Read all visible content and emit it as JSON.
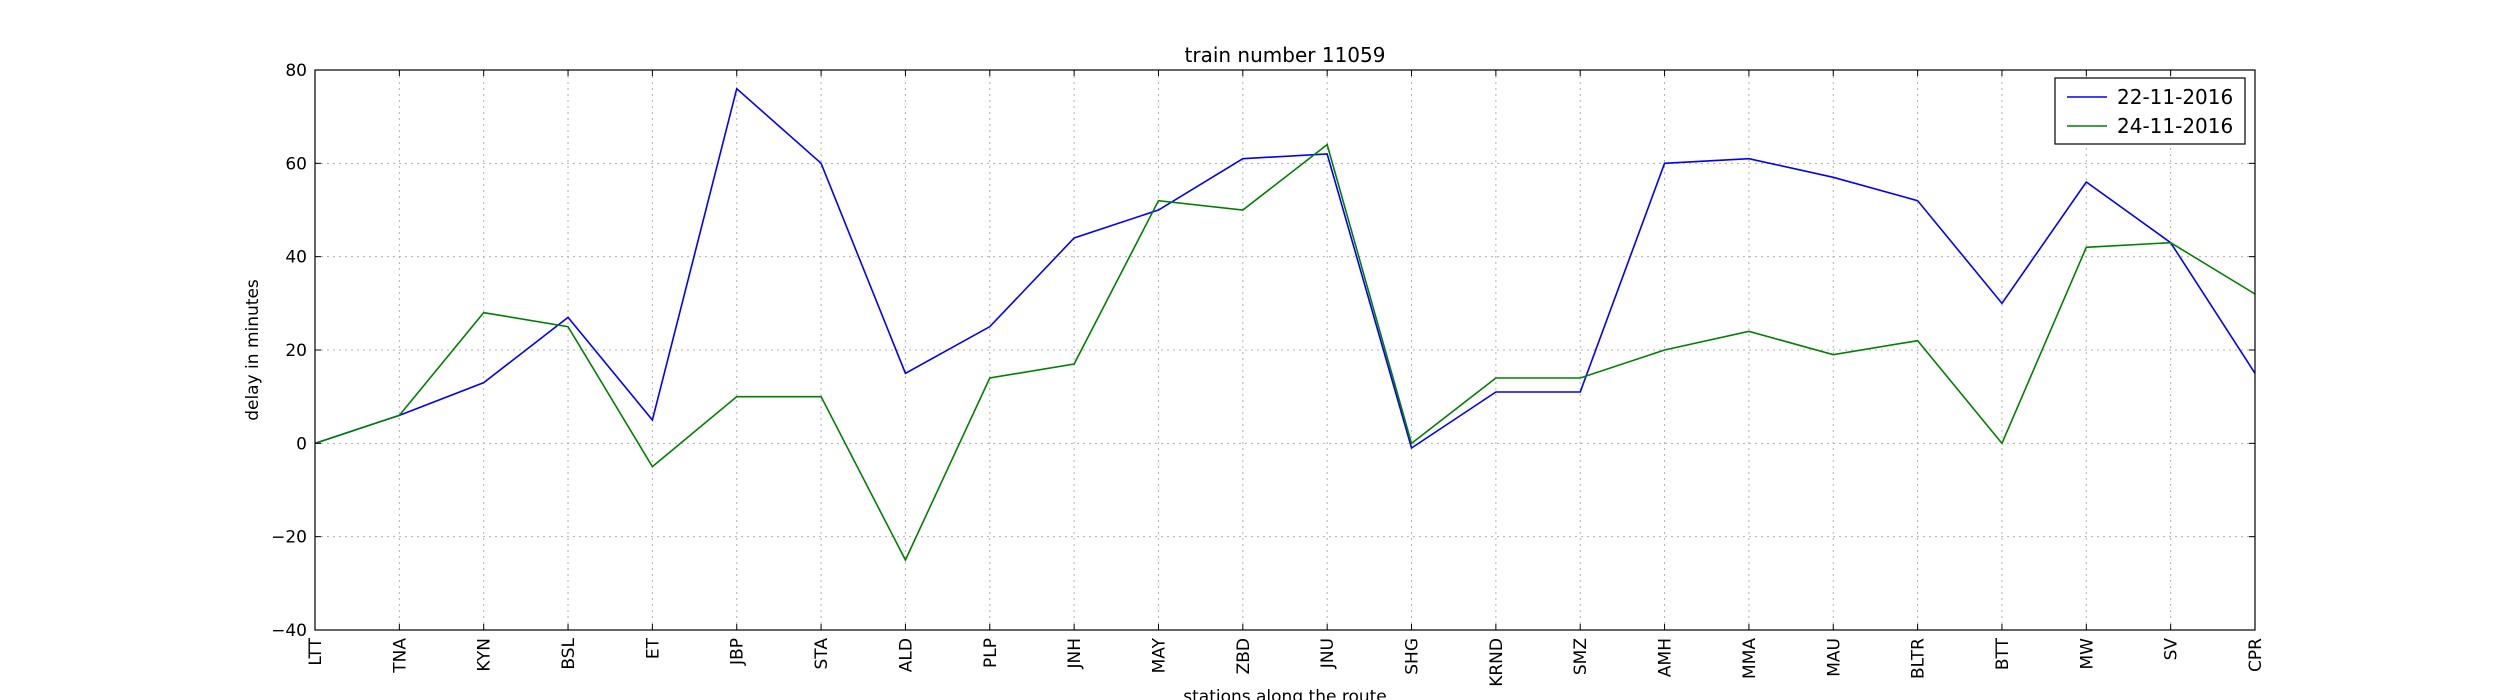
{
  "chart_data": {
    "type": "line",
    "title": "train number 11059",
    "xlabel": "stations along the route",
    "ylabel": "delay in minutes",
    "categories": [
      "LTT",
      "TNA",
      "KYN",
      "BSL",
      "ET",
      "JBP",
      "STA",
      "ALD",
      "PLP",
      "JNH",
      "MAY",
      "ZBD",
      "JNU",
      "SHG",
      "KRND",
      "SMZ",
      "AMH",
      "MMA",
      "MAU",
      "BLTR",
      "BTT",
      "MW",
      "SV",
      "CPR"
    ],
    "ylim": [
      -40,
      80
    ],
    "yticks": [
      -40,
      -20,
      0,
      20,
      40,
      60,
      80
    ],
    "ytick_labels": [
      "−40",
      "−20",
      "0",
      "20",
      "40",
      "60",
      "80"
    ],
    "grid": true,
    "legend_position": "top-right",
    "series": [
      {
        "name": "22-11-2016",
        "color": "#0000ff",
        "values": [
          0,
          6,
          13,
          27,
          5,
          76,
          60,
          15,
          25,
          44,
          50,
          61,
          62,
          -1,
          11,
          11,
          60,
          61,
          57,
          52,
          30,
          56,
          43,
          15
        ]
      },
      {
        "name": "24-11-2016",
        "color": "#008000",
        "values": [
          0,
          6,
          28,
          25,
          -5,
          10,
          10,
          -25,
          14,
          17,
          52,
          50,
          64,
          0,
          14,
          14,
          20,
          24,
          19,
          22,
          0,
          42,
          43,
          32
        ]
      }
    ]
  }
}
